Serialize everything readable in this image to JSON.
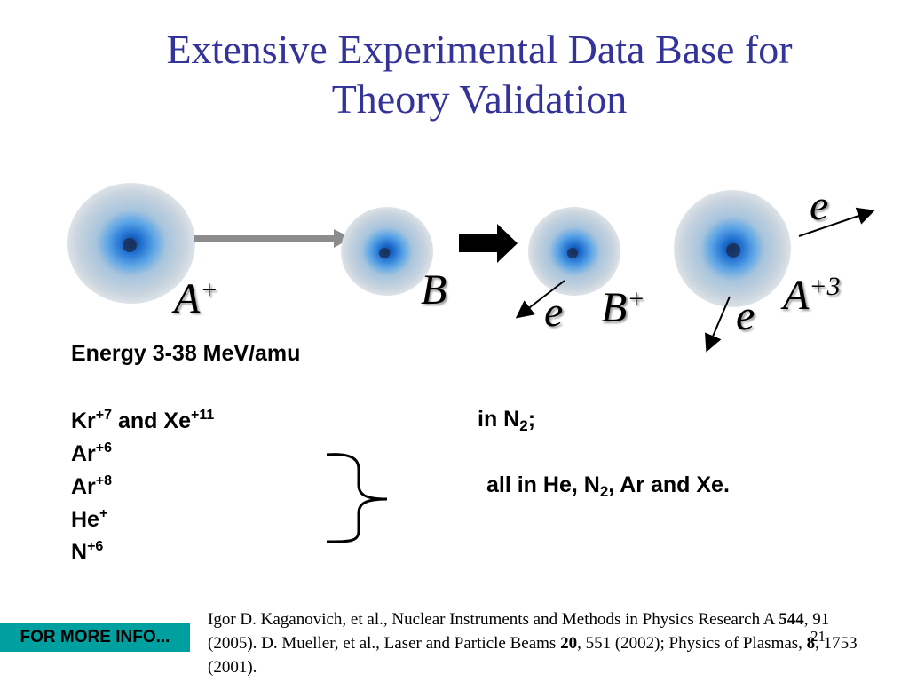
{
  "title": {
    "line1": "Extensive Experimental Data Base for",
    "line2": "Theory Validation"
  },
  "diagram": {
    "label_a": "A",
    "label_a_sup": "+",
    "label_b": "B",
    "label_e1": "e",
    "label_bplus": "B",
    "label_bplus_sup": "+",
    "label_e2": "e",
    "label_a3": "A",
    "label_a3_sup": "+3",
    "label_e3": "e"
  },
  "content": {
    "energy": "Energy 3-38 MeV/amu",
    "kr": "Kr",
    "kr_sup": "+7",
    "and_text": " and ",
    "xe": "Xe",
    "xe_sup": "+11",
    "in_text": "in N",
    "in_sub": "2",
    "in_end": ";",
    "ar1": "Ar",
    "ar1_sup": "+6",
    "ar2": "Ar",
    "ar2_sup": "+8",
    "he": "He",
    "he_sup": "+",
    "n": "N",
    "n_sup": "+6",
    "all_text": "all in He, N",
    "all_sub": "2",
    "all_end": ", Ar and Xe."
  },
  "footer": {
    "more_info": "FOR MORE INFO...",
    "ref_1": "Igor D. Kaganovich, et al., Nuclear Instruments and Methods in Physics Research A ",
    "ref_1_bold": "544",
    "ref_2": ", 91 (2005). D. Mueller, et al., Laser and Particle Beams ",
    "ref_2_bold": "20",
    "ref_3": ", 551 (2002); Physics of Plasmas, ",
    "ref_3_bold": "8",
    "ref_4": ", 1753 (2001).",
    "page_number": "21"
  },
  "colors": {
    "title": "#333399",
    "atom_core": "#1f6fd1",
    "atom_cloud": "#b9c8d8",
    "more_info_bg": "#00a0a0"
  }
}
